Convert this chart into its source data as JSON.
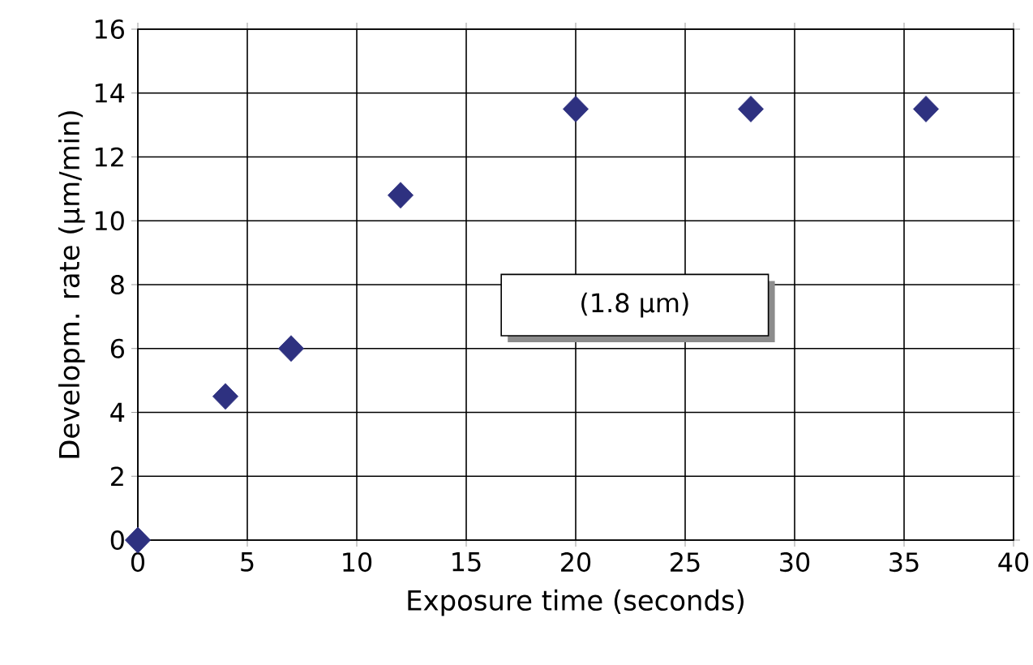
{
  "chart_data": {
    "type": "scatter",
    "xlabel": "Exposure time (seconds)",
    "ylabel": "Developm. rate (µm/min)",
    "x": [
      0,
      4,
      7,
      12,
      20,
      28,
      36
    ],
    "values": [
      0,
      4.5,
      6,
      10.8,
      13.5,
      13.5,
      13.5
    ],
    "color": "#2e3180",
    "marker": "diamond",
    "xlim": [
      0,
      40
    ],
    "xticks": [
      0,
      5,
      10,
      15,
      20,
      25,
      30,
      35,
      40
    ],
    "ylim": [
      0,
      16
    ],
    "yticks": [
      0,
      2,
      4,
      6,
      8,
      10,
      12,
      14,
      16
    ],
    "grid": true,
    "annotations": [
      "(1.8 µm)"
    ]
  }
}
